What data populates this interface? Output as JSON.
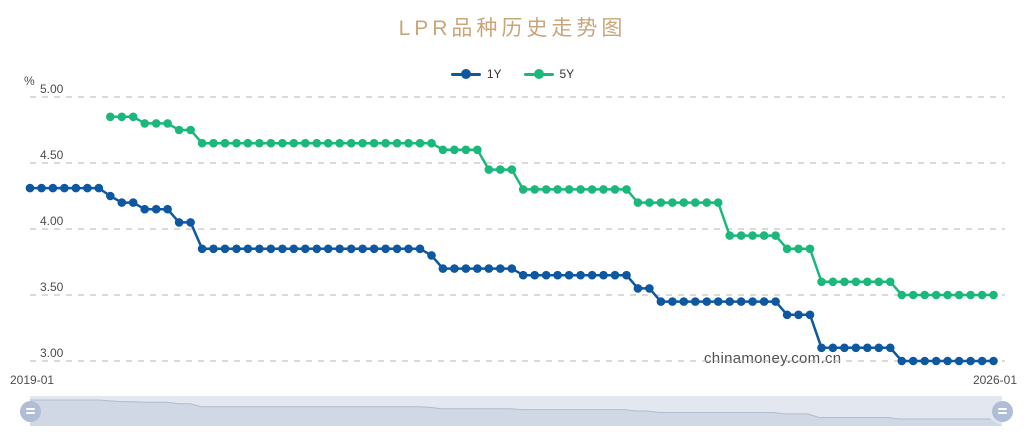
{
  "title": "LPR品种历史走势图",
  "watermark": "chinamoney.com.cn",
  "legend": {
    "items": [
      {
        "label": "1Y",
        "color": "#0e57a1"
      },
      {
        "label": "5Y",
        "color": "#1ab87b"
      }
    ]
  },
  "colors": {
    "title": "#c9a57a",
    "grid": "#b5b5b5",
    "axis_label": "#4d4d4d",
    "watermark": "#4f4f4f",
    "legend_label": "#333333",
    "series_1y": "#0e57a1",
    "series_5y": "#1ab87b",
    "slider_bg": "#e2e7f0",
    "slider_area": "#d0d7e5",
    "slider_line": "#b3bccd",
    "slider_handle": "#afbdd6"
  },
  "chart_data": {
    "type": "line",
    "title": "LPR品种历史走势图",
    "xlabel": "",
    "ylabel": "%",
    "ylim": [
      3.0,
      5.0
    ],
    "y_ticks": [
      "5.00",
      "4.50",
      "4.00",
      "3.50",
      "3.00"
    ],
    "x_axis_labels": [
      "2019-01",
      "2026-01"
    ],
    "grid": "horizontal-dashed",
    "legend_position": "top-center",
    "x": [
      "2019-01",
      "2019-02",
      "2019-03",
      "2019-04",
      "2019-05",
      "2019-06",
      "2019-07",
      "2019-08",
      "2019-09",
      "2019-10",
      "2019-11",
      "2019-12",
      "2020-01",
      "2020-02",
      "2020-03",
      "2020-04",
      "2020-05",
      "2020-06",
      "2020-07",
      "2020-08",
      "2020-09",
      "2020-10",
      "2020-11",
      "2020-12",
      "2021-01",
      "2021-02",
      "2021-03",
      "2021-04",
      "2021-05",
      "2021-06",
      "2021-07",
      "2021-08",
      "2021-09",
      "2021-10",
      "2021-11",
      "2021-12",
      "2022-01",
      "2022-02",
      "2022-03",
      "2022-04",
      "2022-05",
      "2022-06",
      "2022-07",
      "2022-08",
      "2022-09",
      "2022-10",
      "2022-11",
      "2022-12",
      "2023-01",
      "2023-02",
      "2023-03",
      "2023-04",
      "2023-05",
      "2023-06",
      "2023-07",
      "2023-08",
      "2023-09",
      "2023-10",
      "2023-11",
      "2023-12",
      "2024-01",
      "2024-02",
      "2024-03",
      "2024-04",
      "2024-05",
      "2024-06",
      "2024-07",
      "2024-08",
      "2024-09",
      "2024-10",
      "2024-11",
      "2024-12",
      "2025-01",
      "2025-02",
      "2025-03",
      "2025-04",
      "2025-05",
      "2025-06",
      "2025-07",
      "2025-08",
      "2025-09",
      "2025-10",
      "2025-11",
      "2025-12",
      "2026-01"
    ],
    "series": [
      {
        "name": "1Y",
        "color": "#0e57a1",
        "values": [
          4.31,
          4.31,
          4.31,
          4.31,
          4.31,
          4.31,
          4.31,
          4.25,
          4.2,
          4.2,
          4.15,
          4.15,
          4.15,
          4.05,
          4.05,
          3.85,
          3.85,
          3.85,
          3.85,
          3.85,
          3.85,
          3.85,
          3.85,
          3.85,
          3.85,
          3.85,
          3.85,
          3.85,
          3.85,
          3.85,
          3.85,
          3.85,
          3.85,
          3.85,
          3.85,
          3.8,
          3.7,
          3.7,
          3.7,
          3.7,
          3.7,
          3.7,
          3.7,
          3.65,
          3.65,
          3.65,
          3.65,
          3.65,
          3.65,
          3.65,
          3.65,
          3.65,
          3.65,
          3.55,
          3.55,
          3.45,
          3.45,
          3.45,
          3.45,
          3.45,
          3.45,
          3.45,
          3.45,
          3.45,
          3.45,
          3.45,
          3.35,
          3.35,
          3.35,
          3.1,
          3.1,
          3.1,
          3.1,
          3.1,
          3.1,
          3.1,
          3.0,
          3.0,
          3.0,
          3.0,
          3.0,
          3.0,
          3.0,
          3.0,
          3.0
        ]
      },
      {
        "name": "5Y",
        "color": "#1ab87b",
        "values": [
          null,
          null,
          null,
          null,
          null,
          null,
          null,
          4.85,
          4.85,
          4.85,
          4.8,
          4.8,
          4.8,
          4.75,
          4.75,
          4.65,
          4.65,
          4.65,
          4.65,
          4.65,
          4.65,
          4.65,
          4.65,
          4.65,
          4.65,
          4.65,
          4.65,
          4.65,
          4.65,
          4.65,
          4.65,
          4.65,
          4.65,
          4.65,
          4.65,
          4.65,
          4.6,
          4.6,
          4.6,
          4.6,
          4.45,
          4.45,
          4.45,
          4.3,
          4.3,
          4.3,
          4.3,
          4.3,
          4.3,
          4.3,
          4.3,
          4.3,
          4.3,
          4.2,
          4.2,
          4.2,
          4.2,
          4.2,
          4.2,
          4.2,
          4.2,
          3.95,
          3.95,
          3.95,
          3.95,
          3.95,
          3.85,
          3.85,
          3.85,
          3.6,
          3.6,
          3.6,
          3.6,
          3.6,
          3.6,
          3.6,
          3.5,
          3.5,
          3.5,
          3.5,
          3.5,
          3.5,
          3.5,
          3.5,
          3.5
        ]
      }
    ]
  }
}
